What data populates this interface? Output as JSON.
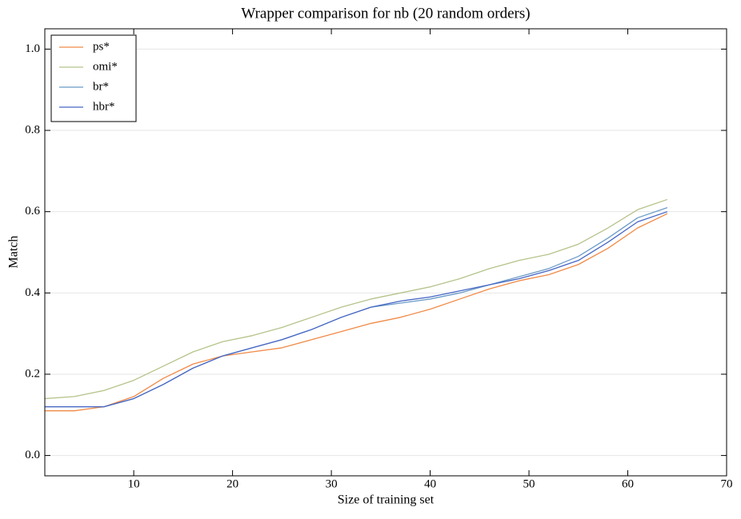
{
  "chart_data": {
    "type": "line",
    "title": "Wrapper comparison for nb (20 random orders)",
    "x_label": "Size of training set",
    "y_label": "Match",
    "x": [
      1,
      4,
      7,
      10,
      13,
      16,
      19,
      22,
      25,
      28,
      31,
      34,
      37,
      40,
      43,
      46,
      49,
      52,
      55,
      58,
      61,
      64
    ],
    "series": [
      {
        "name": "ps*",
        "color": "#f08a47",
        "values": [
          0.11,
          0.11,
          0.12,
          0.145,
          0.19,
          0.225,
          0.245,
          0.255,
          0.265,
          0.285,
          0.305,
          0.325,
          0.34,
          0.36,
          0.385,
          0.41,
          0.43,
          0.445,
          0.47,
          0.51,
          0.56,
          0.595
        ]
      },
      {
        "name": "omi*",
        "color": "#b5c38a",
        "values": [
          0.14,
          0.145,
          0.16,
          0.185,
          0.22,
          0.255,
          0.28,
          0.295,
          0.315,
          0.34,
          0.365,
          0.385,
          0.4,
          0.415,
          0.435,
          0.46,
          0.48,
          0.495,
          0.52,
          0.56,
          0.605,
          0.63
        ]
      },
      {
        "name": "br*",
        "color": "#6b9bc7",
        "values": [
          0.12,
          0.12,
          0.12,
          0.14,
          0.175,
          0.215,
          0.245,
          0.265,
          0.285,
          0.31,
          0.34,
          0.365,
          0.375,
          0.385,
          0.4,
          0.42,
          0.44,
          0.46,
          0.49,
          0.535,
          0.585,
          0.61
        ]
      },
      {
        "name": "hbr*",
        "color": "#4666c4",
        "values": [
          0.12,
          0.12,
          0.12,
          0.14,
          0.175,
          0.215,
          0.245,
          0.265,
          0.285,
          0.31,
          0.34,
          0.365,
          0.38,
          0.39,
          0.405,
          0.42,
          0.435,
          0.455,
          0.48,
          0.525,
          0.575,
          0.6
        ]
      }
    ],
    "xlim": [
      1,
      70
    ],
    "xticks": [
      10,
      20,
      30,
      40,
      50,
      60,
      70
    ],
    "ylim": [
      -0.05,
      1.05
    ],
    "yticks": [
      {
        "value": 0,
        "label": "0.0"
      },
      0.2,
      0.4,
      0.6,
      0.8,
      {
        "value": 1,
        "label": "1.0"
      }
    ],
    "grid": true,
    "legend": "upper-left"
  }
}
